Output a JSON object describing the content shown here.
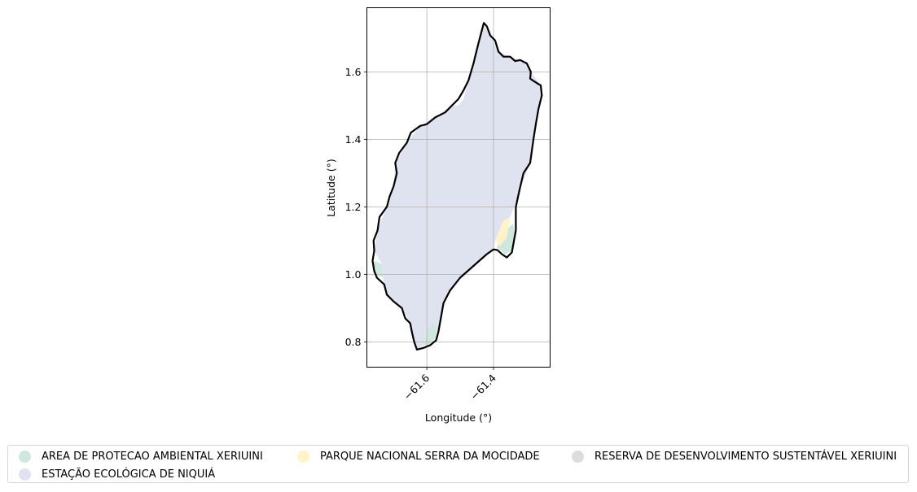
{
  "chart_data": {
    "type": "map",
    "xlabel": "Longitude (°)",
    "ylabel": "Latitude (°)",
    "xlim": [
      -61.78,
      -61.23
    ],
    "ylim": [
      0.725,
      1.79
    ],
    "xticks": [
      -61.6,
      -61.4
    ],
    "xtick_labels": [
      "−61.6",
      "−61.4"
    ],
    "yticks": [
      0.8,
      1.0,
      1.2,
      1.4,
      1.6
    ],
    "ytick_labels": [
      "0.8",
      "1.0",
      "1.2",
      "1.4",
      "1.6"
    ],
    "grid": true,
    "legend_position": "bottom",
    "boundary_color": "#000000",
    "boundary": [
      [
        -61.429,
        1.745
      ],
      [
        -61.42,
        1.735
      ],
      [
        -61.41,
        1.708
      ],
      [
        -61.395,
        1.693
      ],
      [
        -61.385,
        1.66
      ],
      [
        -61.37,
        1.645
      ],
      [
        -61.35,
        1.645
      ],
      [
        -61.335,
        1.632
      ],
      [
        -61.32,
        1.635
      ],
      [
        -61.3,
        1.625
      ],
      [
        -61.288,
        1.6
      ],
      [
        -61.29,
        1.58
      ],
      [
        -61.275,
        1.57
      ],
      [
        -61.258,
        1.56
      ],
      [
        -61.255,
        1.53
      ],
      [
        -61.265,
        1.49
      ],
      [
        -61.272,
        1.45
      ],
      [
        -61.28,
        1.4
      ],
      [
        -61.29,
        1.33
      ],
      [
        -61.31,
        1.3
      ],
      [
        -61.322,
        1.25
      ],
      [
        -61.333,
        1.2
      ],
      [
        -61.333,
        1.13
      ],
      [
        -61.345,
        1.065
      ],
      [
        -61.36,
        1.05
      ],
      [
        -61.375,
        1.06
      ],
      [
        -61.388,
        1.072
      ],
      [
        -61.4,
        1.074
      ],
      [
        -61.42,
        1.06
      ],
      [
        -61.46,
        1.025
      ],
      [
        -61.5,
        0.99
      ],
      [
        -61.53,
        0.953
      ],
      [
        -61.55,
        0.915
      ],
      [
        -61.558,
        0.87
      ],
      [
        -61.565,
        0.832
      ],
      [
        -61.572,
        0.805
      ],
      [
        -61.59,
        0.79
      ],
      [
        -61.61,
        0.782
      ],
      [
        -61.63,
        0.777
      ],
      [
        -61.638,
        0.8
      ],
      [
        -61.645,
        0.83
      ],
      [
        -61.65,
        0.855
      ],
      [
        -61.665,
        0.87
      ],
      [
        -61.675,
        0.9
      ],
      [
        -61.7,
        0.92
      ],
      [
        -61.72,
        0.94
      ],
      [
        -61.728,
        0.97
      ],
      [
        -61.75,
        0.99
      ],
      [
        -61.758,
        1.01
      ],
      [
        -61.763,
        1.04
      ],
      [
        -61.758,
        1.07
      ],
      [
        -61.76,
        1.1
      ],
      [
        -61.748,
        1.13
      ],
      [
        -61.742,
        1.17
      ],
      [
        -61.72,
        1.2
      ],
      [
        -61.712,
        1.23
      ],
      [
        -61.7,
        1.26
      ],
      [
        -61.69,
        1.3
      ],
      [
        -61.695,
        1.33
      ],
      [
        -61.683,
        1.36
      ],
      [
        -61.66,
        1.39
      ],
      [
        -61.648,
        1.42
      ],
      [
        -61.62,
        1.44
      ],
      [
        -61.6,
        1.445
      ],
      [
        -61.575,
        1.465
      ],
      [
        -61.545,
        1.48
      ],
      [
        -61.525,
        1.5
      ],
      [
        -61.505,
        1.52
      ],
      [
        -61.49,
        1.545
      ],
      [
        -61.475,
        1.575
      ],
      [
        -61.46,
        1.625
      ],
      [
        -61.445,
        1.685
      ],
      [
        -61.429,
        1.745
      ]
    ],
    "areas": [
      {
        "name": "AREA DE PROTECAO AMBIENTAL XERIUINI",
        "color": "#cfe8dd",
        "polygons": [
          [
            [
              -61.765,
              1.025
            ],
            [
              -61.75,
              0.995
            ],
            [
              -61.732,
              0.993
            ],
            [
              -61.735,
              1.03
            ],
            [
              -61.755,
              1.04
            ]
          ],
          [
            [
              -61.61,
              0.79
            ],
            [
              -61.6,
              0.835
            ],
            [
              -61.578,
              0.86
            ],
            [
              -61.568,
              0.84
            ],
            [
              -61.575,
              0.81
            ],
            [
              -61.595,
              0.792
            ]
          ],
          [
            [
              -61.39,
              1.08
            ],
            [
              -61.365,
              1.13
            ],
            [
              -61.342,
              1.15
            ],
            [
              -61.335,
              1.12
            ],
            [
              -61.345,
              1.07
            ],
            [
              -61.365,
              1.06
            ]
          ]
        ]
      },
      {
        "name": "PARQUE NACIONAL SERRA DA MOCIDADE",
        "color": "#fff3c7",
        "polygons": [
          [
            [
              -61.395,
              1.1
            ],
            [
              -61.37,
              1.16
            ],
            [
              -61.35,
              1.17
            ],
            [
              -61.36,
              1.11
            ],
            [
              -61.38,
              1.085
            ]
          ]
        ]
      },
      {
        "name": "RESERVA DE DESENVOLVIMENTO SUSTENTÁVEL XERIUINI",
        "color": "#dcdcdc",
        "polygons": []
      },
      {
        "name": "ESTAÇÃO ECOLÓGICA DE NIQUIÁ",
        "color": "#dfe3f0",
        "polygons": [
          [
            [
              -61.429,
              1.745
            ],
            [
              -61.41,
              1.708
            ],
            [
              -61.385,
              1.66
            ],
            [
              -61.35,
              1.645
            ],
            [
              -61.3,
              1.625
            ],
            [
              -61.288,
              1.6
            ],
            [
              -61.258,
              1.56
            ],
            [
              -61.255,
              1.53
            ],
            [
              -61.272,
              1.45
            ],
            [
              -61.29,
              1.33
            ],
            [
              -61.322,
              1.25
            ],
            [
              -61.338,
              1.2
            ],
            [
              -61.35,
              1.17
            ],
            [
              -61.37,
              1.16
            ],
            [
              -61.395,
              1.1
            ],
            [
              -61.4,
              1.074
            ],
            [
              -61.42,
              1.06
            ],
            [
              -61.46,
              1.025
            ],
            [
              -61.5,
              0.99
            ],
            [
              -61.53,
              0.953
            ],
            [
              -61.55,
              0.915
            ],
            [
              -61.558,
              0.87
            ],
            [
              -61.565,
              0.832
            ],
            [
              -61.578,
              0.86
            ],
            [
              -61.6,
              0.835
            ],
            [
              -61.61,
              0.79
            ],
            [
              -61.63,
              0.777
            ],
            [
              -61.638,
              0.8
            ],
            [
              -61.65,
              0.855
            ],
            [
              -61.675,
              0.9
            ],
            [
              -61.72,
              0.94
            ],
            [
              -61.728,
              0.97
            ],
            [
              -61.732,
              0.993
            ],
            [
              -61.735,
              1.03
            ],
            [
              -61.758,
              1.07
            ],
            [
              -61.748,
              1.13
            ],
            [
              -61.72,
              1.2
            ],
            [
              -61.7,
              1.26
            ],
            [
              -61.695,
              1.33
            ],
            [
              -61.66,
              1.39
            ],
            [
              -61.62,
              1.44
            ],
            [
              -61.575,
              1.465
            ],
            [
              -61.525,
              1.5
            ],
            [
              -61.505,
              1.5
            ],
            [
              -61.49,
              1.52
            ],
            [
              -61.475,
              1.575
            ],
            [
              -61.46,
              1.625
            ],
            [
              -61.445,
              1.685
            ]
          ]
        ]
      }
    ]
  },
  "legend": {
    "items": [
      {
        "label": "AREA DE PROTECAO AMBIENTAL XERIUINI",
        "color": "#cfe8dd"
      },
      {
        "label": "PARQUE NACIONAL SERRA DA MOCIDADE",
        "color": "#fff3c7"
      },
      {
        "label": "RESERVA DE DESENVOLVIMENTO SUSTENTÁVEL XERIUINI",
        "color": "#dcdcdc"
      },
      {
        "label": "ESTAÇÃO ECOLÓGICA DE NIQUIÁ",
        "color": "#dfe3f0"
      }
    ]
  }
}
